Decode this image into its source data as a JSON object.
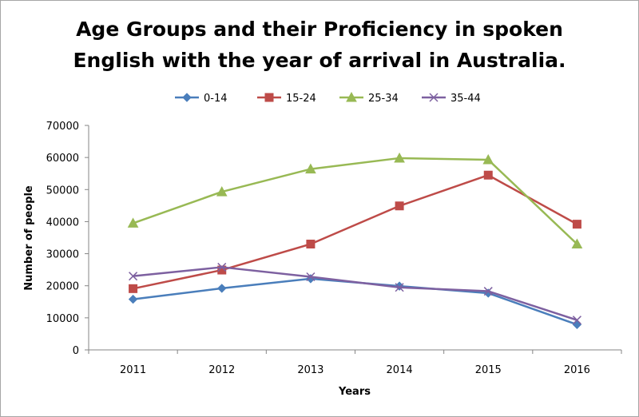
{
  "chart_data": {
    "type": "line",
    "title_lines": [
      "Age Groups and their Proficiency in spoken",
      "English with the year of arrival in Australia."
    ],
    "xlabel": "Years",
    "ylabel": "Number of people",
    "categories": [
      "2011",
      "2012",
      "2013",
      "2014",
      "2015",
      "2016"
    ],
    "ylim": [
      0,
      70000
    ],
    "yticks": [
      0,
      10000,
      20000,
      30000,
      40000,
      50000,
      60000,
      70000
    ],
    "grid": false,
    "legend_position": "top",
    "series": [
      {
        "name": "0-14",
        "color": "#4a7ebb",
        "marker": "diamond",
        "values": [
          15800,
          19200,
          22200,
          19900,
          17700,
          7900
        ]
      },
      {
        "name": "15-24",
        "color": "#be4b48",
        "marker": "square",
        "values": [
          19100,
          24900,
          33000,
          44900,
          54500,
          39200
        ]
      },
      {
        "name": "25-34",
        "color": "#98b954",
        "marker": "triangle",
        "values": [
          39500,
          49300,
          56400,
          59800,
          59300,
          33000
        ]
      },
      {
        "name": "35-44",
        "color": "#7d60a0",
        "marker": "x",
        "values": [
          23000,
          25800,
          22800,
          19500,
          18300,
          9300
        ]
      }
    ]
  }
}
